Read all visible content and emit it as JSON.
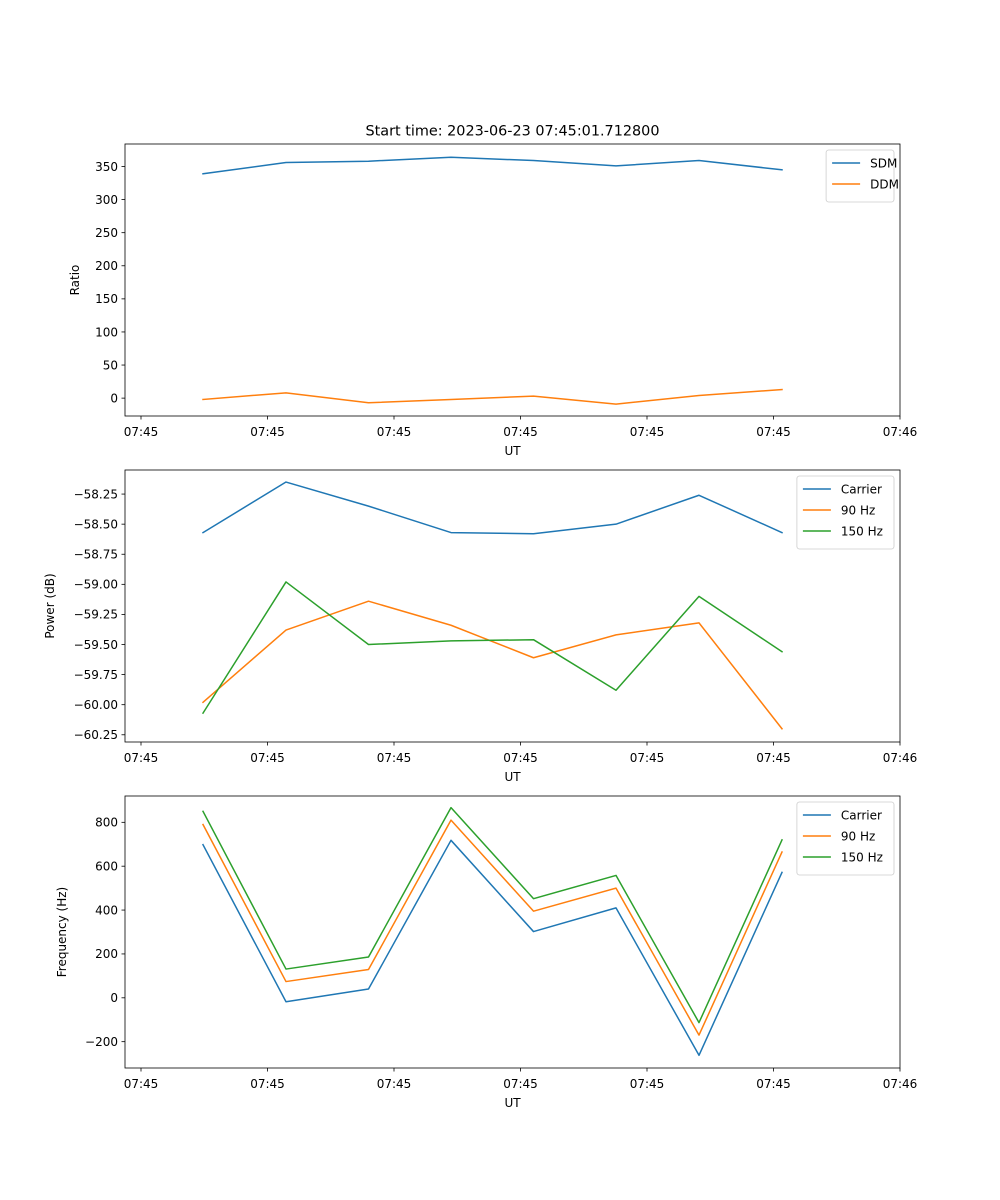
{
  "title": "Start time: 2023-06-23 07:45:01.712800",
  "colors": {
    "blue": "#1f77b4",
    "orange": "#ff7f0e",
    "green": "#2ca02c"
  },
  "x_ticks": [
    "07:45",
    "07:45",
    "07:45",
    "07:45",
    "07:45",
    "07:45",
    "07:46"
  ],
  "chart_data": [
    {
      "type": "line",
      "title": "Start time: 2023-06-23 07:45:01.712800",
      "xlabel": "UT",
      "ylabel": "Ratio",
      "x": [
        1,
        2,
        3,
        4,
        5,
        6,
        7,
        8
      ],
      "x_ticks": [
        "07:45",
        "07:45",
        "07:45",
        "07:45",
        "07:45",
        "07:45",
        "07:46"
      ],
      "yticks": [
        0,
        50,
        100,
        150,
        200,
        250,
        300,
        350
      ],
      "ylim": [
        -27,
        384
      ],
      "legend_position": "top-right",
      "grid": false,
      "series": [
        {
          "name": "SDM",
          "color": "#1f77b4",
          "values": [
            339,
            356,
            358,
            364,
            359,
            351,
            359,
            345
          ]
        },
        {
          "name": "DDM",
          "color": "#ff7f0e",
          "values": [
            -2,
            8,
            -7,
            -2,
            3,
            -9,
            4,
            13
          ]
        }
      ]
    },
    {
      "type": "line",
      "title": "",
      "xlabel": "UT",
      "ylabel": "Power (dB)",
      "x": [
        1,
        2,
        3,
        4,
        5,
        6,
        7,
        8
      ],
      "x_ticks": [
        "07:45",
        "07:45",
        "07:45",
        "07:45",
        "07:45",
        "07:45",
        "07:46"
      ],
      "yticks": [
        -60.25,
        -60.0,
        -59.75,
        -59.5,
        -59.25,
        -59.0,
        -58.75,
        -58.5,
        -58.25
      ],
      "ytick_labels": [
        "−60.25",
        "−60.00",
        "−59.75",
        "−59.50",
        "−59.25",
        "−59.00",
        "−58.75",
        "−58.50",
        "−58.25"
      ],
      "ylim": [
        -60.31,
        -58.05
      ],
      "legend_position": "top-right",
      "grid": false,
      "series": [
        {
          "name": "Carrier",
          "color": "#1f77b4",
          "values": [
            -58.57,
            -58.15,
            -58.35,
            -58.57,
            -58.58,
            -58.5,
            -58.26,
            -58.57
          ]
        },
        {
          "name": "90 Hz",
          "color": "#ff7f0e",
          "values": [
            -59.98,
            -59.38,
            -59.14,
            -59.34,
            -59.61,
            -59.42,
            -59.32,
            -60.2
          ]
        },
        {
          "name": "150 Hz",
          "color": "#2ca02c",
          "values": [
            -60.07,
            -58.98,
            -59.5,
            -59.47,
            -59.46,
            -59.88,
            -59.1,
            -59.56
          ]
        }
      ]
    },
    {
      "type": "line",
      "title": "",
      "xlabel": "UT",
      "ylabel": "Frequency (Hz)",
      "x": [
        1,
        2,
        3,
        4,
        5,
        6,
        7,
        8
      ],
      "x_ticks": [
        "07:45",
        "07:45",
        "07:45",
        "07:45",
        "07:45",
        "07:45",
        "07:46"
      ],
      "yticks": [
        -200,
        0,
        200,
        400,
        600,
        800
      ],
      "ytick_labels": [
        "−200",
        "0",
        "200",
        "400",
        "600",
        "800"
      ],
      "ylim": [
        -320,
        920
      ],
      "legend_position": "top-right",
      "grid": false,
      "series": [
        {
          "name": "Carrier",
          "color": "#1f77b4",
          "values": [
            698,
            -18,
            40,
            718,
            302,
            410,
            -262,
            572
          ]
        },
        {
          "name": "90 Hz",
          "color": "#ff7f0e",
          "values": [
            790,
            74,
            129,
            810,
            395,
            500,
            -170,
            665
          ]
        },
        {
          "name": "150 Hz",
          "color": "#2ca02c",
          "values": [
            850,
            131,
            186,
            867,
            452,
            558,
            -113,
            720
          ]
        }
      ]
    }
  ]
}
